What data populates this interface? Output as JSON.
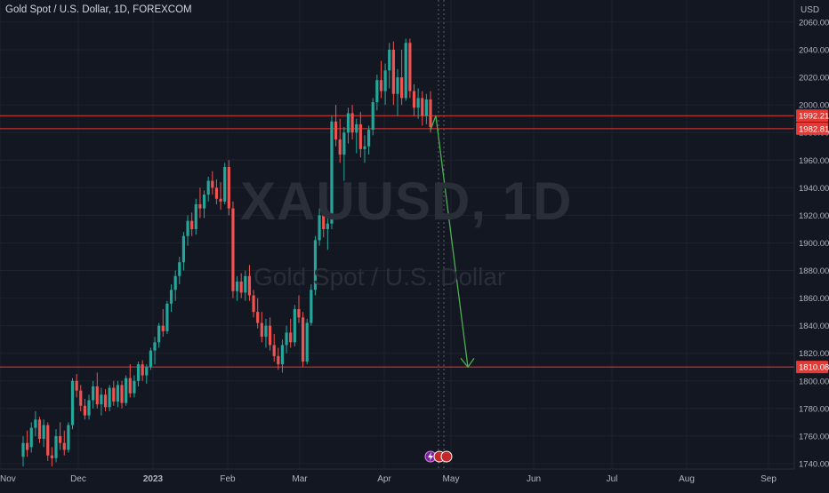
{
  "header": {
    "title": "Gold Spot / U.S. Dollar, 1D, FOREXCOM"
  },
  "watermark": {
    "symbol": "XAUUSD, 1D",
    "description": "Gold Spot / U.S. Dollar"
  },
  "price_axis": {
    "unit": "USD",
    "ticks": [
      "2060.00",
      "2040.00",
      "2020.00",
      "2000.00",
      "1980.00",
      "1960.00",
      "1940.00",
      "1920.00",
      "1900.00",
      "1880.00",
      "1860.00",
      "1840.00",
      "1820.00",
      "1800.00",
      "1780.00",
      "1760.00",
      "1740.00"
    ]
  },
  "time_axis": {
    "labels": [
      "Nov",
      "Dec",
      "2023",
      "Feb",
      "Mar",
      "Apr",
      "May",
      "Jun",
      "Jul",
      "Aug",
      "Sep"
    ]
  },
  "levels": [
    {
      "value": 1992.21,
      "label": "1992.21"
    },
    {
      "value": 1982.81,
      "label": "1982.81"
    },
    {
      "value": 1810.08,
      "label": "1810.08"
    }
  ],
  "colors": {
    "background": "#131722",
    "up": "#26a69a",
    "down": "#ef5350",
    "level_line": "#e53935",
    "arrow": "#4caf50",
    "grid": "#1e222d"
  },
  "chart_data": {
    "type": "candlestick",
    "title": "Gold Spot / U.S. Dollar, 1D, FOREXCOM",
    "ylabel": "USD",
    "ylim": [
      1738,
      2060
    ],
    "grid": true,
    "candles": [
      [
        1745,
        1760,
        1738,
        1755
      ],
      [
        1755,
        1764,
        1745,
        1750
      ],
      [
        1752,
        1770,
        1748,
        1766
      ],
      [
        1766,
        1778,
        1760,
        1772
      ],
      [
        1772,
        1774,
        1755,
        1758
      ],
      [
        1758,
        1772,
        1752,
        1768
      ],
      [
        1768,
        1770,
        1742,
        1746
      ],
      [
        1746,
        1752,
        1738,
        1744
      ],
      [
        1744,
        1765,
        1741,
        1760
      ],
      [
        1760,
        1770,
        1750,
        1755
      ],
      [
        1755,
        1764,
        1746,
        1750
      ],
      [
        1750,
        1770,
        1748,
        1768
      ],
      [
        1768,
        1802,
        1765,
        1800
      ],
      [
        1800,
        1805,
        1788,
        1793
      ],
      [
        1793,
        1797,
        1778,
        1782
      ],
      [
        1782,
        1787,
        1772,
        1775
      ],
      [
        1775,
        1790,
        1772,
        1786
      ],
      [
        1786,
        1800,
        1780,
        1796
      ],
      [
        1796,
        1806,
        1780,
        1783
      ],
      [
        1783,
        1795,
        1775,
        1790
      ],
      [
        1790,
        1794,
        1778,
        1781
      ],
      [
        1781,
        1797,
        1778,
        1795
      ],
      [
        1795,
        1800,
        1782,
        1785
      ],
      [
        1785,
        1800,
        1781,
        1797
      ],
      [
        1797,
        1800,
        1780,
        1784
      ],
      [
        1784,
        1804,
        1782,
        1802
      ],
      [
        1802,
        1812,
        1788,
        1791
      ],
      [
        1791,
        1804,
        1788,
        1800
      ],
      [
        1800,
        1814,
        1796,
        1812
      ],
      [
        1812,
        1815,
        1800,
        1804
      ],
      [
        1804,
        1812,
        1798,
        1810
      ],
      [
        1810,
        1824,
        1808,
        1822
      ],
      [
        1822,
        1832,
        1812,
        1828
      ],
      [
        1828,
        1842,
        1824,
        1840
      ],
      [
        1840,
        1852,
        1832,
        1836
      ],
      [
        1836,
        1858,
        1834,
        1856
      ],
      [
        1856,
        1870,
        1850,
        1866
      ],
      [
        1866,
        1880,
        1858,
        1876
      ],
      [
        1876,
        1890,
        1870,
        1886
      ],
      [
        1886,
        1908,
        1880,
        1905
      ],
      [
        1905,
        1920,
        1898,
        1916
      ],
      [
        1916,
        1922,
        1905,
        1910
      ],
      [
        1910,
        1932,
        1906,
        1928
      ],
      [
        1928,
        1940,
        1918,
        1925
      ],
      [
        1925,
        1938,
        1918,
        1935
      ],
      [
        1935,
        1948,
        1930,
        1945
      ],
      [
        1945,
        1952,
        1935,
        1940
      ],
      [
        1940,
        1946,
        1928,
        1932
      ],
      [
        1932,
        1944,
        1924,
        1930
      ],
      [
        1930,
        1958,
        1928,
        1955
      ],
      [
        1955,
        1960,
        1920,
        1925
      ],
      [
        1925,
        1930,
        1860,
        1865
      ],
      [
        1865,
        1876,
        1858,
        1872
      ],
      [
        1872,
        1878,
        1860,
        1864
      ],
      [
        1864,
        1880,
        1858,
        1876
      ],
      [
        1876,
        1884,
        1858,
        1862
      ],
      [
        1862,
        1866,
        1846,
        1850
      ],
      [
        1850,
        1860,
        1838,
        1842
      ],
      [
        1842,
        1850,
        1828,
        1832
      ],
      [
        1832,
        1845,
        1824,
        1840
      ],
      [
        1840,
        1846,
        1822,
        1826
      ],
      [
        1826,
        1834,
        1814,
        1818
      ],
      [
        1818,
        1824,
        1808,
        1812
      ],
      [
        1812,
        1830,
        1806,
        1826
      ],
      [
        1826,
        1840,
        1820,
        1835
      ],
      [
        1835,
        1845,
        1824,
        1828
      ],
      [
        1828,
        1855,
        1825,
        1852
      ],
      [
        1852,
        1862,
        1842,
        1846
      ],
      [
        1846,
        1850,
        1810,
        1814
      ],
      [
        1814,
        1845,
        1812,
        1842
      ],
      [
        1842,
        1870,
        1840,
        1866
      ],
      [
        1866,
        1905,
        1862,
        1902
      ],
      [
        1902,
        1925,
        1898,
        1920
      ],
      [
        1920,
        1930,
        1904,
        1910
      ],
      [
        1910,
        1918,
        1895,
        1914
      ],
      [
        1914,
        1992,
        1910,
        1988
      ],
      [
        1988,
        2000,
        1970,
        1975
      ],
      [
        1975,
        1990,
        1958,
        1964
      ],
      [
        1964,
        1984,
        1945,
        1980
      ],
      [
        1980,
        1998,
        1972,
        1994
      ],
      [
        1994,
        2000,
        1975,
        1980
      ],
      [
        1980,
        1990,
        1965,
        1986
      ],
      [
        1986,
        1995,
        1962,
        1968
      ],
      [
        1968,
        1978,
        1958,
        1970
      ],
      [
        1970,
        1985,
        1964,
        1982
      ],
      [
        1982,
        2005,
        1978,
        2002
      ],
      [
        2002,
        2022,
        1996,
        2018
      ],
      [
        2018,
        2032,
        2005,
        2010
      ],
      [
        2010,
        2030,
        2000,
        2025
      ],
      [
        2025,
        2045,
        2012,
        2040
      ],
      [
        2040,
        2046,
        2000,
        2008
      ],
      [
        2008,
        2026,
        1992,
        2020
      ],
      [
        2020,
        2040,
        2000,
        2005
      ],
      [
        2005,
        2048,
        2003,
        2045
      ],
      [
        2045,
        2048,
        2005,
        2010
      ],
      [
        2010,
        2015,
        1992,
        1998
      ],
      [
        1998,
        2012,
        1990,
        2005
      ],
      [
        2005,
        2010,
        1985,
        1992
      ],
      [
        1992,
        2008,
        1986,
        2004
      ],
      [
        2004,
        2010,
        1980,
        1984
      ]
    ],
    "forecast_arrow": {
      "from": [
        1992,
        "late Apr"
      ],
      "to": [
        1810,
        "early May"
      ]
    },
    "annotations": [
      "1992.21",
      "1982.81",
      "1810.08"
    ]
  }
}
